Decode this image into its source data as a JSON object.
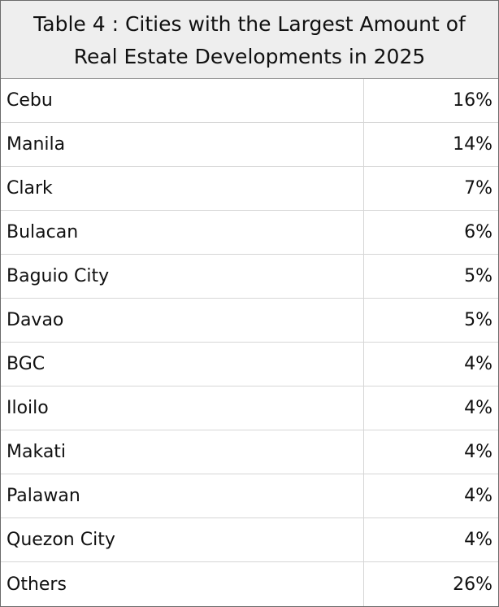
{
  "chart_data": {
    "type": "table",
    "title": "Table 4 : Cities with the Largest Amount of Real Estate Developments in 2025",
    "title_lines": [
      "Table 4 : Cities with the Largest Amount of",
      "Real Estate Developments in 2025"
    ],
    "rows": [
      {
        "city": "Cebu",
        "value": 16,
        "label": "16%"
      },
      {
        "city": "Manila",
        "value": 14,
        "label": "14%"
      },
      {
        "city": "Clark",
        "value": 7,
        "label": "7%"
      },
      {
        "city": "Bulacan",
        "value": 6,
        "label": "6%"
      },
      {
        "city": "Baguio City",
        "value": 5,
        "label": "5%"
      },
      {
        "city": "Davao",
        "value": 5,
        "label": "5%"
      },
      {
        "city": "BGC",
        "value": 4,
        "label": "4%"
      },
      {
        "city": "Iloilo",
        "value": 4,
        "label": "4%"
      },
      {
        "city": "Makati",
        "value": 4,
        "label": "4%"
      },
      {
        "city": "Palawan",
        "value": 4,
        "label": "4%"
      },
      {
        "city": "Quezon City",
        "value": 4,
        "label": "4%"
      },
      {
        "city": "Others",
        "value": 26,
        "label": "26%"
      }
    ]
  },
  "colors": {
    "header_bg": "#eeeeee",
    "border": "#6b6b6b",
    "grid": "#d6d6d6",
    "text": "#111111"
  }
}
